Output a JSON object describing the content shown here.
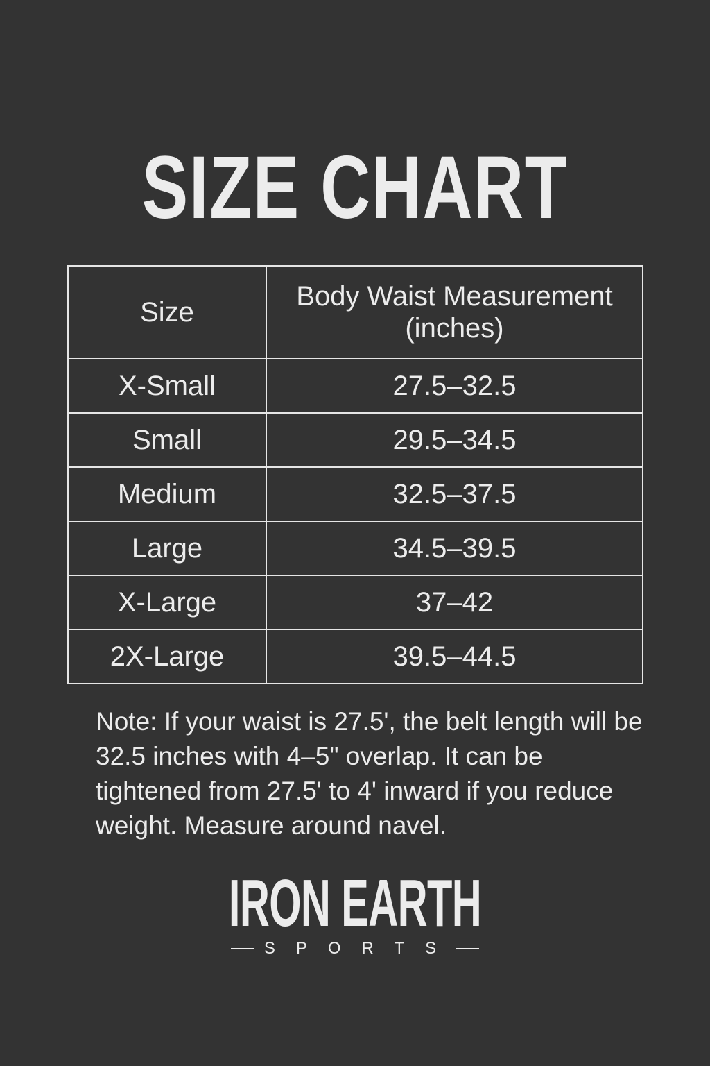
{
  "title": "SIZE CHART",
  "table": {
    "headers": [
      "Size",
      "Body Waist Measurement (inches)"
    ],
    "rows": [
      {
        "size": "X-Small",
        "waist": "27.5–32.5"
      },
      {
        "size": "Small",
        "waist": "29.5–34.5"
      },
      {
        "size": "Medium",
        "waist": "32.5–37.5"
      },
      {
        "size": "Large",
        "waist": "34.5–39.5"
      },
      {
        "size": "X-Large",
        "waist": "37–42"
      },
      {
        "size": "2X-Large",
        "waist": "39.5–44.5"
      }
    ]
  },
  "note": "Note: If your waist is 27.5', the belt length will be 32.5 inches with 4–5\" overlap. It can be tightened from 27.5' to 4' inward if you reduce weight. Measure around navel.",
  "logo": {
    "main": "IRON EARTH",
    "sub": "SPORTS"
  },
  "colors": {
    "background": "#333333",
    "text": "#ececec",
    "border": "#e6e6e6"
  }
}
